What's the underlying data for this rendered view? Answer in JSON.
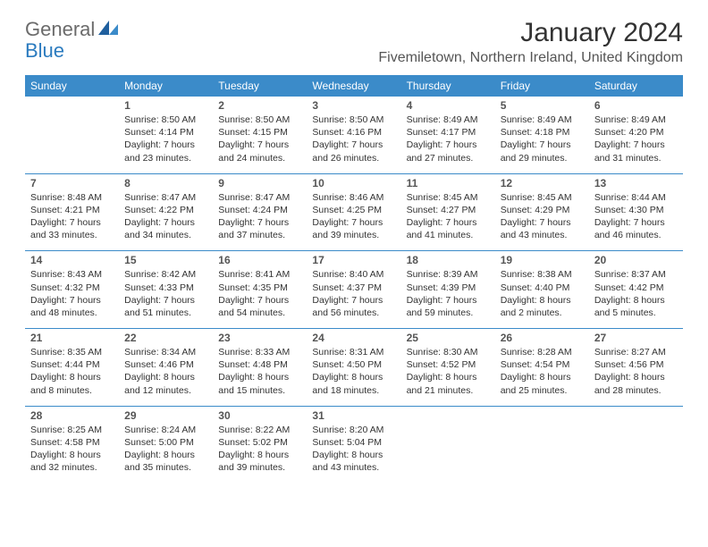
{
  "logo": {
    "part1": "General",
    "part2": "Blue"
  },
  "title": "January 2024",
  "location": "Fivemiletown, Northern Ireland, United Kingdom",
  "colors": {
    "header_bg": "#3b8bc9",
    "header_text": "#ffffff",
    "border": "#3b8bc9",
    "logo_gray": "#6b6b6b",
    "logo_blue": "#2b7bbf",
    "title_color": "#333333",
    "location_color": "#555555",
    "daynum_color": "#555555",
    "info_color": "#333333",
    "background": "#ffffff"
  },
  "dayNames": [
    "Sunday",
    "Monday",
    "Tuesday",
    "Wednesday",
    "Thursday",
    "Friday",
    "Saturday"
  ],
  "weeks": [
    [
      {
        "day": "",
        "sunrise": "",
        "sunset": "",
        "daylight1": "",
        "daylight2": ""
      },
      {
        "day": "1",
        "sunrise": "Sunrise: 8:50 AM",
        "sunset": "Sunset: 4:14 PM",
        "daylight1": "Daylight: 7 hours",
        "daylight2": "and 23 minutes."
      },
      {
        "day": "2",
        "sunrise": "Sunrise: 8:50 AM",
        "sunset": "Sunset: 4:15 PM",
        "daylight1": "Daylight: 7 hours",
        "daylight2": "and 24 minutes."
      },
      {
        "day": "3",
        "sunrise": "Sunrise: 8:50 AM",
        "sunset": "Sunset: 4:16 PM",
        "daylight1": "Daylight: 7 hours",
        "daylight2": "and 26 minutes."
      },
      {
        "day": "4",
        "sunrise": "Sunrise: 8:49 AM",
        "sunset": "Sunset: 4:17 PM",
        "daylight1": "Daylight: 7 hours",
        "daylight2": "and 27 minutes."
      },
      {
        "day": "5",
        "sunrise": "Sunrise: 8:49 AM",
        "sunset": "Sunset: 4:18 PM",
        "daylight1": "Daylight: 7 hours",
        "daylight2": "and 29 minutes."
      },
      {
        "day": "6",
        "sunrise": "Sunrise: 8:49 AM",
        "sunset": "Sunset: 4:20 PM",
        "daylight1": "Daylight: 7 hours",
        "daylight2": "and 31 minutes."
      }
    ],
    [
      {
        "day": "7",
        "sunrise": "Sunrise: 8:48 AM",
        "sunset": "Sunset: 4:21 PM",
        "daylight1": "Daylight: 7 hours",
        "daylight2": "and 33 minutes."
      },
      {
        "day": "8",
        "sunrise": "Sunrise: 8:47 AM",
        "sunset": "Sunset: 4:22 PM",
        "daylight1": "Daylight: 7 hours",
        "daylight2": "and 34 minutes."
      },
      {
        "day": "9",
        "sunrise": "Sunrise: 8:47 AM",
        "sunset": "Sunset: 4:24 PM",
        "daylight1": "Daylight: 7 hours",
        "daylight2": "and 37 minutes."
      },
      {
        "day": "10",
        "sunrise": "Sunrise: 8:46 AM",
        "sunset": "Sunset: 4:25 PM",
        "daylight1": "Daylight: 7 hours",
        "daylight2": "and 39 minutes."
      },
      {
        "day": "11",
        "sunrise": "Sunrise: 8:45 AM",
        "sunset": "Sunset: 4:27 PM",
        "daylight1": "Daylight: 7 hours",
        "daylight2": "and 41 minutes."
      },
      {
        "day": "12",
        "sunrise": "Sunrise: 8:45 AM",
        "sunset": "Sunset: 4:29 PM",
        "daylight1": "Daylight: 7 hours",
        "daylight2": "and 43 minutes."
      },
      {
        "day": "13",
        "sunrise": "Sunrise: 8:44 AM",
        "sunset": "Sunset: 4:30 PM",
        "daylight1": "Daylight: 7 hours",
        "daylight2": "and 46 minutes."
      }
    ],
    [
      {
        "day": "14",
        "sunrise": "Sunrise: 8:43 AM",
        "sunset": "Sunset: 4:32 PM",
        "daylight1": "Daylight: 7 hours",
        "daylight2": "and 48 minutes."
      },
      {
        "day": "15",
        "sunrise": "Sunrise: 8:42 AM",
        "sunset": "Sunset: 4:33 PM",
        "daylight1": "Daylight: 7 hours",
        "daylight2": "and 51 minutes."
      },
      {
        "day": "16",
        "sunrise": "Sunrise: 8:41 AM",
        "sunset": "Sunset: 4:35 PM",
        "daylight1": "Daylight: 7 hours",
        "daylight2": "and 54 minutes."
      },
      {
        "day": "17",
        "sunrise": "Sunrise: 8:40 AM",
        "sunset": "Sunset: 4:37 PM",
        "daylight1": "Daylight: 7 hours",
        "daylight2": "and 56 minutes."
      },
      {
        "day": "18",
        "sunrise": "Sunrise: 8:39 AM",
        "sunset": "Sunset: 4:39 PM",
        "daylight1": "Daylight: 7 hours",
        "daylight2": "and 59 minutes."
      },
      {
        "day": "19",
        "sunrise": "Sunrise: 8:38 AM",
        "sunset": "Sunset: 4:40 PM",
        "daylight1": "Daylight: 8 hours",
        "daylight2": "and 2 minutes."
      },
      {
        "day": "20",
        "sunrise": "Sunrise: 8:37 AM",
        "sunset": "Sunset: 4:42 PM",
        "daylight1": "Daylight: 8 hours",
        "daylight2": "and 5 minutes."
      }
    ],
    [
      {
        "day": "21",
        "sunrise": "Sunrise: 8:35 AM",
        "sunset": "Sunset: 4:44 PM",
        "daylight1": "Daylight: 8 hours",
        "daylight2": "and 8 minutes."
      },
      {
        "day": "22",
        "sunrise": "Sunrise: 8:34 AM",
        "sunset": "Sunset: 4:46 PM",
        "daylight1": "Daylight: 8 hours",
        "daylight2": "and 12 minutes."
      },
      {
        "day": "23",
        "sunrise": "Sunrise: 8:33 AM",
        "sunset": "Sunset: 4:48 PM",
        "daylight1": "Daylight: 8 hours",
        "daylight2": "and 15 minutes."
      },
      {
        "day": "24",
        "sunrise": "Sunrise: 8:31 AM",
        "sunset": "Sunset: 4:50 PM",
        "daylight1": "Daylight: 8 hours",
        "daylight2": "and 18 minutes."
      },
      {
        "day": "25",
        "sunrise": "Sunrise: 8:30 AM",
        "sunset": "Sunset: 4:52 PM",
        "daylight1": "Daylight: 8 hours",
        "daylight2": "and 21 minutes."
      },
      {
        "day": "26",
        "sunrise": "Sunrise: 8:28 AM",
        "sunset": "Sunset: 4:54 PM",
        "daylight1": "Daylight: 8 hours",
        "daylight2": "and 25 minutes."
      },
      {
        "day": "27",
        "sunrise": "Sunrise: 8:27 AM",
        "sunset": "Sunset: 4:56 PM",
        "daylight1": "Daylight: 8 hours",
        "daylight2": "and 28 minutes."
      }
    ],
    [
      {
        "day": "28",
        "sunrise": "Sunrise: 8:25 AM",
        "sunset": "Sunset: 4:58 PM",
        "daylight1": "Daylight: 8 hours",
        "daylight2": "and 32 minutes."
      },
      {
        "day": "29",
        "sunrise": "Sunrise: 8:24 AM",
        "sunset": "Sunset: 5:00 PM",
        "daylight1": "Daylight: 8 hours",
        "daylight2": "and 35 minutes."
      },
      {
        "day": "30",
        "sunrise": "Sunrise: 8:22 AM",
        "sunset": "Sunset: 5:02 PM",
        "daylight1": "Daylight: 8 hours",
        "daylight2": "and 39 minutes."
      },
      {
        "day": "31",
        "sunrise": "Sunrise: 8:20 AM",
        "sunset": "Sunset: 5:04 PM",
        "daylight1": "Daylight: 8 hours",
        "daylight2": "and 43 minutes."
      },
      {
        "day": "",
        "sunrise": "",
        "sunset": "",
        "daylight1": "",
        "daylight2": ""
      },
      {
        "day": "",
        "sunrise": "",
        "sunset": "",
        "daylight1": "",
        "daylight2": ""
      },
      {
        "day": "",
        "sunrise": "",
        "sunset": "",
        "daylight1": "",
        "daylight2": ""
      }
    ]
  ]
}
